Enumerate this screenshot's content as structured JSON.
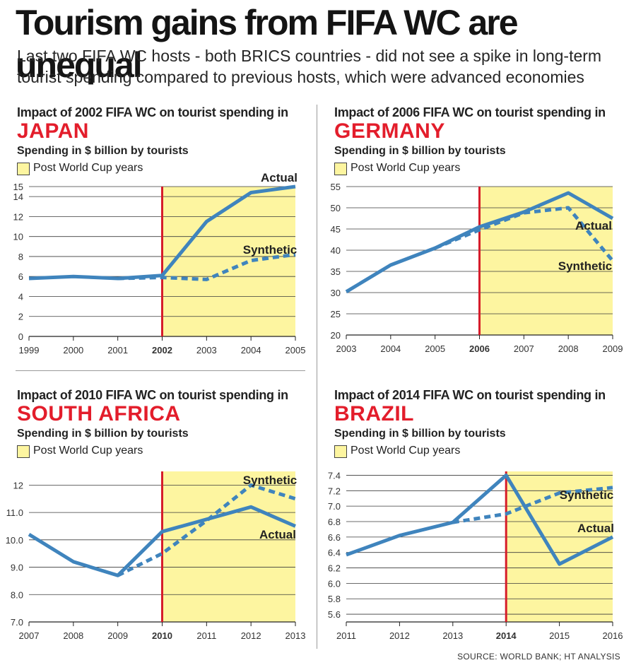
{
  "title": "Tourism gains from FIFA WC are unequal",
  "subtitle": "Last two FIFA WC hosts - both BRICS countries - did not see a spike in long-term tourist spending compared to previous hosts, which were advanced economies",
  "source": "SOURCE: WORLD BANK; HT ANALYSIS",
  "colors": {
    "line": "#3f84bd",
    "wc_marker": "#d61d2a",
    "post_wc_fill": "#fdf5a0",
    "country": "#e31d2b"
  },
  "chart_data": [
    {
      "type": "line",
      "heading": "Impact of 2002 FIFA WC on tourist spending in",
      "country": "JAPAN",
      "ylabel": "Spending in $ billion by tourists",
      "legend_label": "Post World Cup years",
      "x": [
        "1999",
        "2000",
        "2001",
        "2002",
        "2003",
        "2004",
        "2005"
      ],
      "wc_year": "2002",
      "ylim": [
        0,
        15
      ],
      "yticks": [
        "0",
        "2",
        "4",
        "6",
        "8",
        "10",
        "12",
        "14",
        "15"
      ],
      "ytick_values": [
        0,
        2,
        4,
        6,
        8,
        10,
        12,
        14,
        15
      ],
      "series": [
        {
          "name": "Actual",
          "style": "solid",
          "values": [
            5.8,
            6.0,
            5.8,
            6.1,
            11.5,
            14.4,
            15.0
          ]
        },
        {
          "name": "Synthetic",
          "style": "dashed",
          "values": [
            null,
            null,
            5.8,
            5.9,
            5.7,
            7.6,
            8.2
          ]
        }
      ]
    },
    {
      "type": "line",
      "heading": "Impact of 2006 FIFA WC on tourist spending in",
      "country": "GERMANY",
      "ylabel": "Spending in $ billion by tourists",
      "legend_label": "Post World Cup years",
      "x": [
        "2003",
        "2004",
        "2005",
        "2006",
        "2007",
        "2008",
        "2009"
      ],
      "wc_year": "2006",
      "ylim": [
        20,
        55
      ],
      "yticks": [
        "20",
        "25",
        "30",
        "35",
        "40",
        "45",
        "50",
        "55"
      ],
      "ytick_values": [
        20,
        25,
        30,
        35,
        40,
        45,
        50,
        55
      ],
      "series": [
        {
          "name": "Actual",
          "style": "solid",
          "values": [
            30.2,
            36.5,
            40.5,
            45.5,
            49.0,
            53.5,
            47.5
          ]
        },
        {
          "name": "Synthetic",
          "style": "dashed",
          "values": [
            null,
            null,
            40.5,
            44.8,
            48.8,
            50.0,
            37.5
          ]
        }
      ]
    },
    {
      "type": "line",
      "heading": "Impact of 2010 FIFA WC on tourist spending in",
      "country": "SOUTH AFRICA",
      "ylabel": "Spending in $ billion by tourists",
      "legend_label": "Post World Cup years",
      "x": [
        "2007",
        "2008",
        "2009",
        "2010",
        "2011",
        "2012",
        "2013"
      ],
      "wc_year": "2010",
      "ylim": [
        7.0,
        12.5
      ],
      "yticks": [
        "7.0",
        "8.0",
        "9.0",
        "10.0",
        "11.0",
        "12"
      ],
      "ytick_values": [
        7.0,
        8.0,
        9.0,
        10.0,
        11.0,
        12.0
      ],
      "series": [
        {
          "name": "Actual",
          "style": "solid",
          "values": [
            10.2,
            9.2,
            8.7,
            10.3,
            10.75,
            11.2,
            10.5
          ]
        },
        {
          "name": "Synthetic",
          "style": "dashed",
          "values": [
            null,
            null,
            8.7,
            9.5,
            10.7,
            12.0,
            11.5
          ]
        }
      ]
    },
    {
      "type": "line",
      "heading": "Impact of 2014 FIFA WC on tourist spending in",
      "country": "BRAZIL",
      "ylabel": "Spending in $ billion by tourists",
      "legend_label": "Post World Cup years",
      "x": [
        "2011",
        "2012",
        "2013",
        "2014",
        "2015",
        "2016"
      ],
      "wc_year": "2014",
      "ylim": [
        5.5,
        7.45
      ],
      "yticks": [
        "5.6",
        "5.8",
        "6.0",
        "6.2",
        "6.4",
        "6.6",
        "6.8",
        "7.0",
        "7.2",
        "7.4"
      ],
      "ytick_values": [
        5.6,
        5.8,
        6.0,
        6.2,
        6.4,
        6.6,
        6.8,
        7.0,
        7.2,
        7.4
      ],
      "series": [
        {
          "name": "Actual",
          "style": "solid",
          "values": [
            6.37,
            6.62,
            6.79,
            7.4,
            6.25,
            6.6
          ]
        },
        {
          "name": "Synthetic",
          "style": "dashed",
          "values": [
            null,
            null,
            6.79,
            6.9,
            7.17,
            7.24
          ]
        }
      ]
    }
  ]
}
